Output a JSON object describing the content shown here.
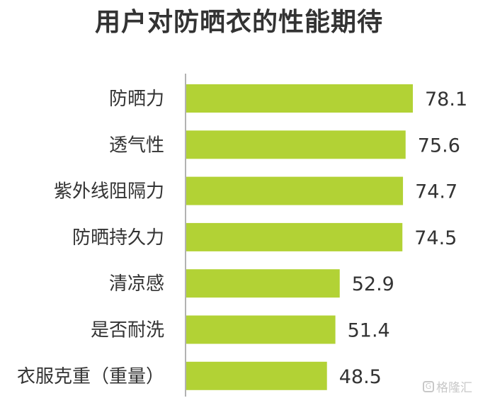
{
  "chart_data": {
    "type": "bar",
    "orientation": "horizontal",
    "title": "用户对防晒衣的性能期待",
    "categories": [
      "防晒力",
      "透气性",
      "紫外线阻隔力",
      "防晒持久力",
      "清凉感",
      "是否耐洗",
      "衣服克重（重量）"
    ],
    "values": [
      78.1,
      75.6,
      74.7,
      74.5,
      52.9,
      51.4,
      48.5
    ],
    "xlim": [
      0,
      80
    ],
    "grid": false,
    "legend": "none",
    "bar_color": "#b2d235",
    "axis_color": "#999999"
  },
  "watermark": {
    "text": "格隆汇",
    "mark": "G"
  }
}
